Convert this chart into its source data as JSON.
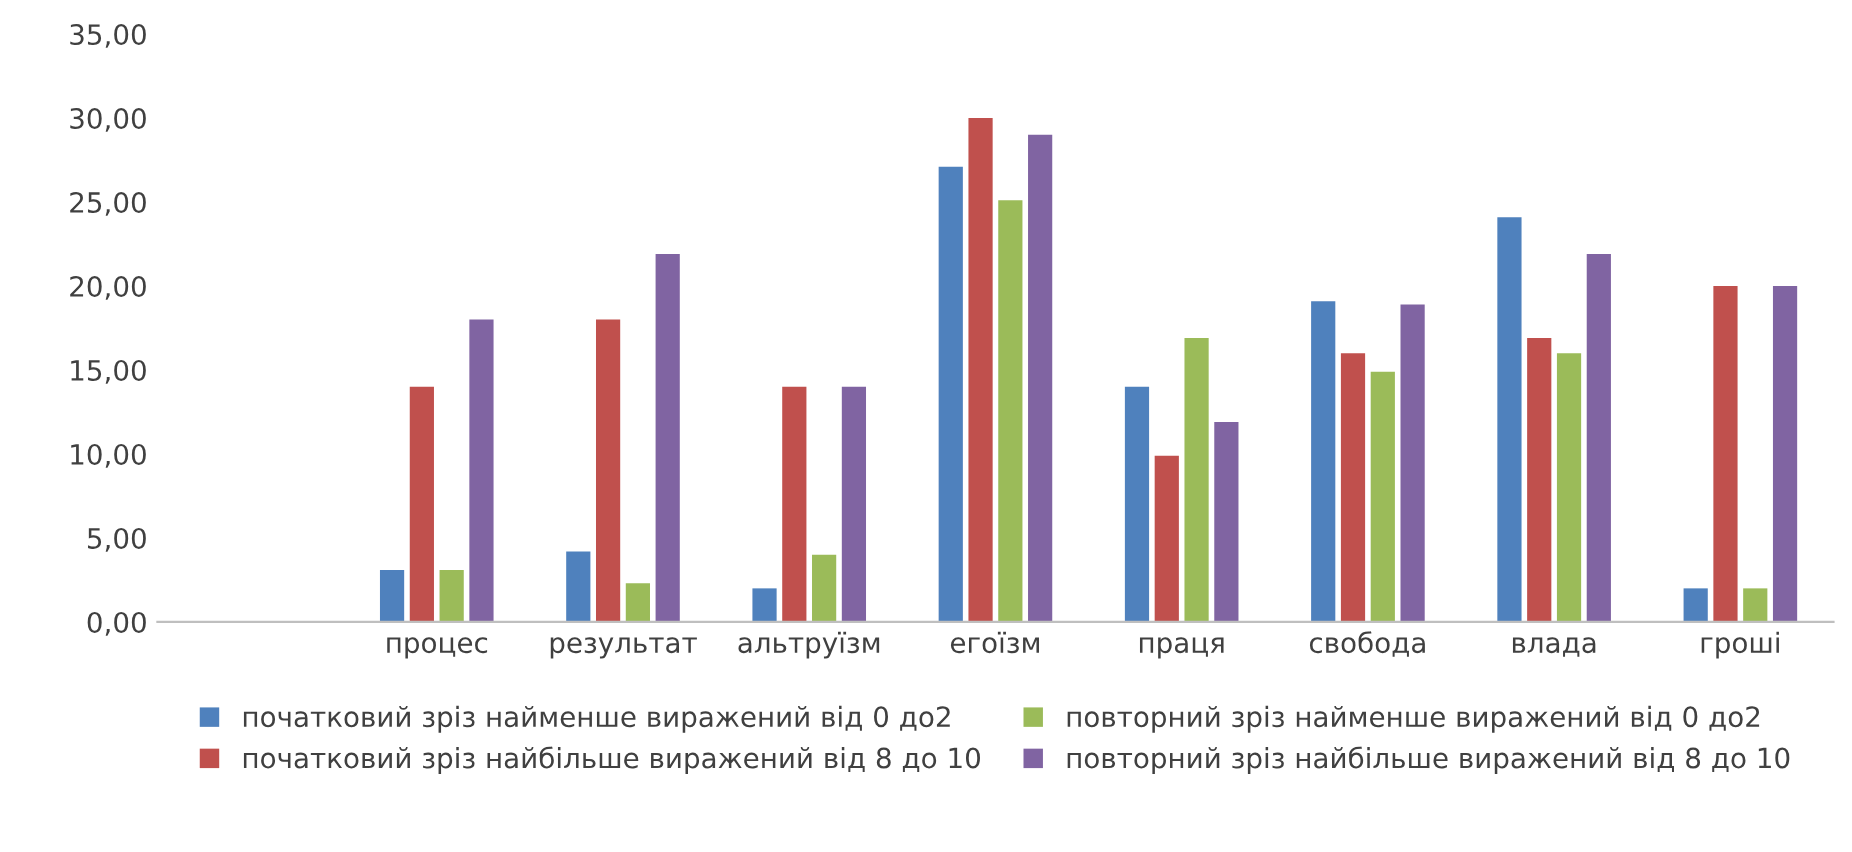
{
  "chart_data": {
    "type": "bar",
    "categories": [
      null,
      "процес",
      "результат",
      "альтруїзм",
      "егоїзм",
      "праця",
      "свобода",
      "влада",
      "гроші"
    ],
    "series": [
      {
        "name": "початковий зріз найменше виражений від 0 до2",
        "color": "#4f81bd",
        "values": [
          null,
          3.1,
          4.2,
          2.0,
          27.1,
          14.0,
          19.1,
          24.1,
          2.0
        ]
      },
      {
        "name": "початковий зріз найбільше виражений від 8 до 10",
        "color": "#c0504d",
        "values": [
          null,
          14.0,
          18.0,
          14.0,
          30.0,
          9.9,
          16.0,
          16.9,
          20.0
        ]
      },
      {
        "name": "повторний зріз найменше виражений від 0 до2",
        "color": "#9bbb59",
        "values": [
          null,
          3.1,
          2.3,
          4.0,
          25.1,
          16.9,
          14.9,
          16.0,
          2.0
        ]
      },
      {
        "name": "повторний зріз найбільше виражений від 8 до 10",
        "color": "#8064a2",
        "values": [
          null,
          18.0,
          21.9,
          14.0,
          29.0,
          11.9,
          18.9,
          21.9,
          20.0
        ]
      }
    ],
    "ylim": [
      0,
      35
    ],
    "yticks": [
      {
        "value": 0,
        "label": "0,00"
      },
      {
        "value": 5,
        "label": "5,00"
      },
      {
        "value": 10,
        "label": "10,00"
      },
      {
        "value": 15,
        "label": "15,00"
      },
      {
        "value": 20,
        "label": "20,00"
      },
      {
        "value": 25,
        "label": "25,00"
      },
      {
        "value": 30,
        "label": "30,00"
      },
      {
        "value": 35,
        "label": "35,00"
      }
    ],
    "grid": false,
    "legend": "bottom"
  }
}
